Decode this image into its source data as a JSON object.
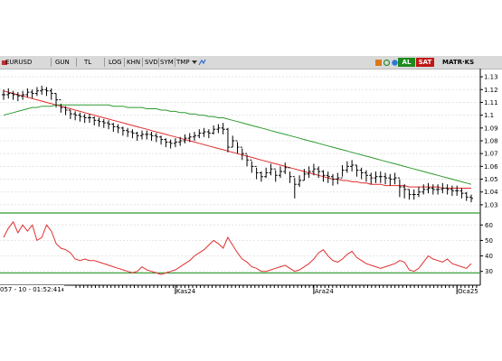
{
  "toolbar": {
    "symbol": "EURUSD",
    "period": "GUN",
    "currency": "TL",
    "scale_buttons": [
      "LOG",
      "KHN",
      "SVD",
      "SYM",
      "TMP"
    ],
    "buy_label": "AL",
    "sell_label": "SAT",
    "matrix_label": "MATR·KS",
    "colors": {
      "buy": "#1e8a1e",
      "sell": "#c01616",
      "bar": "#d9d9d9"
    }
  },
  "status": {
    "cursor_text": "057 - 10 - 01:52:41",
    "cursor_suffix": "4"
  },
  "chart_data": [
    {
      "type": "line",
      "title": "",
      "subtype": "ohlc-bar",
      "x_labels": [
        {
          "index": 36,
          "label": "Kas24"
        },
        {
          "index": 65,
          "label": "Ara24"
        },
        {
          "index": 95,
          "label": "Oca25"
        }
      ],
      "ylim": [
        1.025,
        1.135
      ],
      "y_ticks": [
        1.13,
        1.12,
        1.11,
        1.1,
        1.09,
        1.08,
        1.07,
        1.06,
        1.05,
        1.04,
        1.03
      ],
      "series": [
        {
          "kind": "price",
          "color": "#000000",
          "close": [
            1.116,
            1.117,
            1.116,
            1.115,
            1.116,
            1.118,
            1.117,
            1.119,
            1.12,
            1.119,
            1.117,
            1.112,
            1.106,
            1.104,
            1.101,
            1.1,
            1.099,
            1.098,
            1.098,
            1.096,
            1.095,
            1.094,
            1.093,
            1.091,
            1.09,
            1.088,
            1.087,
            1.086,
            1.084,
            1.085,
            1.085,
            1.084,
            1.083,
            1.081,
            1.079,
            1.078,
            1.079,
            1.08,
            1.082,
            1.083,
            1.084,
            1.086,
            1.087,
            1.086,
            1.089,
            1.09,
            1.089,
            1.075,
            1.08,
            1.075,
            1.07,
            1.065,
            1.06,
            1.055,
            1.052,
            1.055,
            1.058,
            1.053,
            1.056,
            1.059,
            1.052,
            1.046,
            1.049,
            1.054,
            1.056,
            1.058,
            1.056,
            1.053,
            1.052,
            1.05,
            1.051,
            1.057,
            1.06,
            1.061,
            1.057,
            1.055,
            1.053,
            1.051,
            1.052,
            1.052,
            1.051,
            1.05,
            1.051,
            1.044,
            1.042,
            1.038,
            1.038,
            1.04,
            1.042,
            1.043,
            1.042,
            1.042,
            1.043,
            1.042,
            1.041,
            1.041,
            1.039,
            1.036,
            1.035
          ],
          "high": [
            1.12,
            1.121,
            1.119,
            1.118,
            1.119,
            1.121,
            1.12,
            1.122,
            1.123,
            1.122,
            1.121,
            1.117,
            1.109,
            1.107,
            1.104,
            1.103,
            1.102,
            1.101,
            1.101,
            1.099,
            1.098,
            1.097,
            1.096,
            1.094,
            1.093,
            1.091,
            1.09,
            1.089,
            1.087,
            1.088,
            1.088,
            1.087,
            1.086,
            1.084,
            1.082,
            1.081,
            1.082,
            1.083,
            1.085,
            1.086,
            1.087,
            1.089,
            1.09,
            1.089,
            1.092,
            1.093,
            1.094,
            1.09,
            1.084,
            1.079,
            1.074,
            1.069,
            1.064,
            1.059,
            1.056,
            1.059,
            1.062,
            1.057,
            1.06,
            1.063,
            1.056,
            1.051,
            1.053,
            1.058,
            1.06,
            1.062,
            1.06,
            1.057,
            1.056,
            1.054,
            1.055,
            1.061,
            1.064,
            1.065,
            1.061,
            1.059,
            1.057,
            1.055,
            1.056,
            1.056,
            1.055,
            1.054,
            1.055,
            1.05,
            1.046,
            1.042,
            1.042,
            1.044,
            1.046,
            1.047,
            1.046,
            1.046,
            1.047,
            1.046,
            1.045,
            1.045,
            1.043,
            1.04,
            1.038
          ],
          "low": [
            1.112,
            1.113,
            1.112,
            1.111,
            1.112,
            1.114,
            1.113,
            1.115,
            1.116,
            1.115,
            1.112,
            1.106,
            1.102,
            1.1,
            1.097,
            1.096,
            1.095,
            1.094,
            1.094,
            1.092,
            1.091,
            1.09,
            1.089,
            1.087,
            1.086,
            1.084,
            1.083,
            1.082,
            1.08,
            1.081,
            1.081,
            1.08,
            1.079,
            1.077,
            1.075,
            1.074,
            1.075,
            1.076,
            1.078,
            1.079,
            1.08,
            1.082,
            1.083,
            1.082,
            1.085,
            1.086,
            1.085,
            1.071,
            1.075,
            1.07,
            1.065,
            1.06,
            1.055,
            1.05,
            1.048,
            1.051,
            1.053,
            1.048,
            1.051,
            1.054,
            1.047,
            1.035,
            1.044,
            1.049,
            1.051,
            1.053,
            1.051,
            1.048,
            1.047,
            1.045,
            1.046,
            1.052,
            1.055,
            1.056,
            1.052,
            1.05,
            1.048,
            1.046,
            1.047,
            1.047,
            1.046,
            1.045,
            1.046,
            1.036,
            1.035,
            1.034,
            1.034,
            1.036,
            1.038,
            1.039,
            1.038,
            1.038,
            1.039,
            1.038,
            1.037,
            1.037,
            1.035,
            1.033,
            1.032
          ]
        },
        {
          "kind": "moving-average",
          "color": "#e02b2b",
          "values": [
            1.119,
            1.118,
            1.117,
            1.116,
            1.115,
            1.114,
            1.113,
            1.112,
            1.111,
            1.11,
            1.109,
            1.108,
            1.107,
            1.106,
            1.105,
            1.104,
            1.103,
            1.102,
            1.101,
            1.1,
            1.099,
            1.098,
            1.097,
            1.096,
            1.095,
            1.094,
            1.093,
            1.092,
            1.091,
            1.09,
            1.089,
            1.088,
            1.087,
            1.086,
            1.085,
            1.084,
            1.083,
            1.082,
            1.081,
            1.08,
            1.079,
            1.078,
            1.077,
            1.076,
            1.075,
            1.074,
            1.073,
            1.072,
            1.071,
            1.07,
            1.069,
            1.068,
            1.067,
            1.066,
            1.065,
            1.064,
            1.063,
            1.062,
            1.061,
            1.06,
            1.059,
            1.058,
            1.057,
            1.056,
            1.055,
            1.054,
            1.053,
            1.052,
            1.051,
            1.05,
            1.05,
            1.049,
            1.049,
            1.048,
            1.048,
            1.047,
            1.047,
            1.046,
            1.046,
            1.046,
            1.045,
            1.045,
            1.045,
            1.045,
            1.045,
            1.044,
            1.044,
            1.044,
            1.044,
            1.044,
            1.044,
            1.044,
            1.043,
            1.043,
            1.043,
            1.043,
            1.043,
            1.043,
            1.043
          ]
        },
        {
          "kind": "moving-average",
          "color": "#2e9a2e",
          "values": [
            1.1,
            1.101,
            1.102,
            1.103,
            1.104,
            1.105,
            1.106,
            1.106,
            1.107,
            1.107,
            1.107,
            1.108,
            1.108,
            1.108,
            1.108,
            1.108,
            1.108,
            1.108,
            1.108,
            1.108,
            1.108,
            1.108,
            1.108,
            1.107,
            1.107,
            1.107,
            1.106,
            1.106,
            1.106,
            1.106,
            1.105,
            1.105,
            1.105,
            1.104,
            1.104,
            1.103,
            1.103,
            1.102,
            1.102,
            1.101,
            1.101,
            1.1,
            1.1,
            1.099,
            1.099,
            1.098,
            1.098,
            1.097,
            1.096,
            1.095,
            1.094,
            1.093,
            1.092,
            1.091,
            1.09,
            1.089,
            1.088,
            1.087,
            1.086,
            1.085,
            1.084,
            1.083,
            1.082,
            1.081,
            1.08,
            1.079,
            1.078,
            1.077,
            1.076,
            1.075,
            1.074,
            1.073,
            1.072,
            1.071,
            1.07,
            1.069,
            1.068,
            1.067,
            1.066,
            1.065,
            1.064,
            1.063,
            1.062,
            1.061,
            1.06,
            1.059,
            1.058,
            1.057,
            1.056,
            1.055,
            1.054,
            1.053,
            1.052,
            1.051,
            1.05,
            1.049,
            1.048,
            1.047,
            1.046
          ]
        }
      ]
    },
    {
      "type": "line",
      "title": "",
      "subtype": "oscillator",
      "ylim": [
        24,
        66
      ],
      "y_ticks": [
        60,
        50,
        40,
        30
      ],
      "reference_level": 29,
      "series": [
        {
          "color": "#e03030",
          "values": [
            52,
            58,
            62,
            55,
            60,
            56,
            60,
            50,
            52,
            60,
            56,
            48,
            45,
            44,
            42,
            38,
            37,
            38,
            37,
            37,
            36,
            35,
            34,
            33,
            32,
            31,
            30,
            29,
            30,
            33,
            31,
            30,
            29,
            28,
            29,
            30,
            31,
            33,
            35,
            37,
            40,
            42,
            44,
            47,
            50,
            48,
            45,
            52,
            47,
            42,
            38,
            36,
            33,
            32,
            30,
            30,
            31,
            32,
            33,
            34,
            32,
            30,
            31,
            33,
            35,
            38,
            42,
            44,
            40,
            37,
            36,
            38,
            41,
            43,
            39,
            37,
            35,
            34,
            33,
            32,
            33,
            34,
            35,
            37,
            36,
            31,
            30,
            32,
            36,
            40,
            38,
            37,
            36,
            38,
            35,
            34,
            33,
            32,
            35
          ]
        }
      ],
      "series_note": "",
      "reference_color": "#2e9a2e"
    }
  ]
}
